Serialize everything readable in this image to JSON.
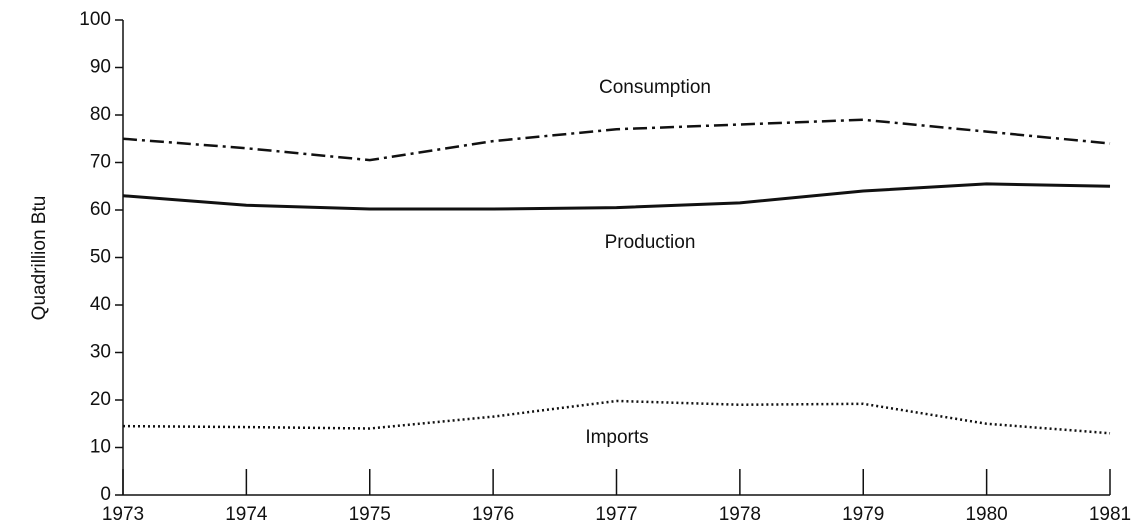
{
  "chart_data": {
    "type": "line",
    "y_label": "Quadrillion Btu",
    "x": [
      1973,
      1974,
      1975,
      1976,
      1977,
      1978,
      1979,
      1980,
      1981
    ],
    "xlim": [
      1973,
      1981
    ],
    "xticks": [
      1973,
      1974,
      1975,
      1976,
      1977,
      1978,
      1979,
      1980,
      1981
    ],
    "ylim": [
      0,
      100
    ],
    "yticks": [
      0,
      10,
      20,
      30,
      40,
      50,
      60,
      70,
      80,
      90,
      100
    ],
    "series": [
      {
        "name": "Consumption",
        "color": "#111111",
        "style": "dashdot",
        "values": [
          75,
          73,
          70.5,
          74.5,
          77,
          78,
          79,
          76.5,
          74
        ]
      },
      {
        "name": "Production",
        "color": "#111111",
        "style": "solid",
        "values": [
          63,
          61,
          60.2,
          60.2,
          60.5,
          61.5,
          64,
          65.5,
          65
        ]
      },
      {
        "name": "Imports",
        "color": "#111111",
        "style": "dotted",
        "values": [
          14.5,
          14.3,
          14,
          16.5,
          19.8,
          19,
          19.2,
          15,
          13
        ]
      }
    ]
  }
}
